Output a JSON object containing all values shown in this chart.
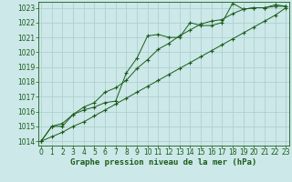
{
  "bg_color": "#cce8e8",
  "grid_color": "#aacccc",
  "line_color": "#1a5c1a",
  "title": "Graphe pression niveau de la mer (hPa)",
  "xlabel_ticks": [
    0,
    1,
    2,
    3,
    4,
    5,
    6,
    7,
    8,
    9,
    10,
    11,
    12,
    13,
    14,
    15,
    16,
    17,
    18,
    19,
    20,
    21,
    22,
    23
  ],
  "yticks": [
    1014,
    1015,
    1016,
    1017,
    1018,
    1019,
    1020,
    1021,
    1022,
    1023
  ],
  "ylim": [
    1013.7,
    1023.4
  ],
  "xlim": [
    -0.3,
    23.3
  ],
  "series1": [
    1014.0,
    1015.0,
    1015.0,
    1015.8,
    1016.1,
    1016.3,
    1016.6,
    1016.7,
    1018.6,
    1019.6,
    1021.1,
    1021.2,
    1021.0,
    1021.0,
    1022.0,
    1021.8,
    1021.8,
    1022.0,
    1023.3,
    1022.9,
    1023.0,
    1023.0,
    1023.2,
    1023.1
  ],
  "series2": [
    1014.0,
    1015.0,
    1015.2,
    1015.8,
    1016.3,
    1016.6,
    1017.3,
    1017.6,
    1018.1,
    1018.9,
    1019.5,
    1020.2,
    1020.6,
    1021.1,
    1021.5,
    1021.9,
    1022.1,
    1022.2,
    1022.6,
    1022.9,
    1023.0,
    1023.0,
    1023.1,
    1023.1
  ],
  "series3": [
    1014.0,
    1014.3,
    1014.6,
    1015.0,
    1015.3,
    1015.7,
    1016.1,
    1016.5,
    1016.9,
    1017.3,
    1017.7,
    1018.1,
    1018.5,
    1018.9,
    1019.3,
    1019.7,
    1020.1,
    1020.5,
    1020.9,
    1021.3,
    1021.7,
    1022.1,
    1022.5,
    1023.0
  ],
  "tick_fontsize": 5.5,
  "title_fontsize": 6.5
}
